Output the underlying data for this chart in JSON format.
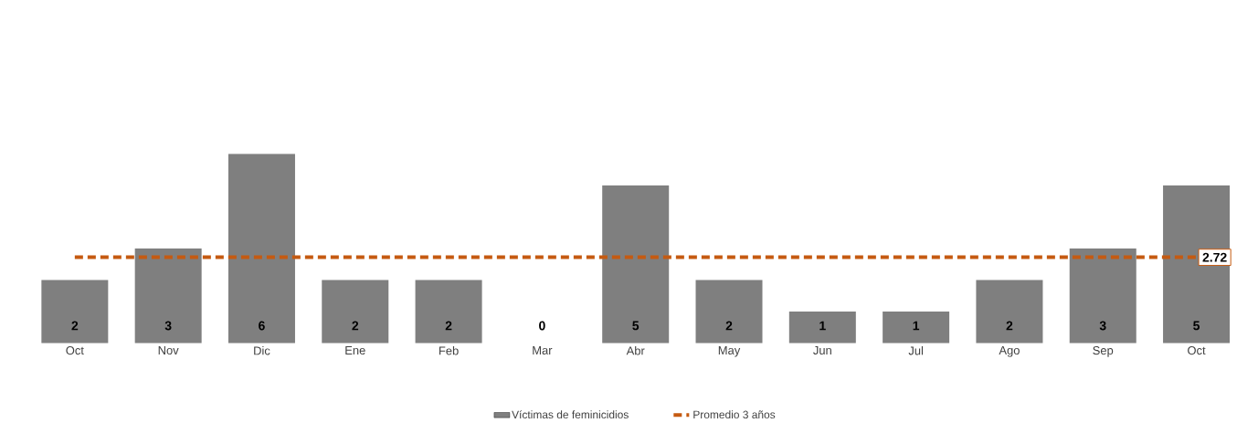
{
  "chart_data": {
    "type": "bar",
    "categories": [
      "Oct",
      "Nov",
      "Dic",
      "Ene",
      "Feb",
      "Mar",
      "Abr",
      "May",
      "Jun",
      "Jul",
      "Ago",
      "Sep",
      "Oct"
    ],
    "series": [
      {
        "name": "Víctimas de feminicidios",
        "color": "#7f7f7f",
        "values": [
          2,
          3,
          6,
          2,
          2,
          0,
          5,
          2,
          1,
          1,
          2,
          3,
          5
        ],
        "value_labels": [
          "2",
          "3",
          "6",
          "2",
          "2",
          "0",
          "5",
          "2",
          "1",
          "1",
          "2",
          "3",
          "5"
        ]
      },
      {
        "name": "Promedio 3 años",
        "type": "line",
        "color": "#c55a11",
        "line_style": "dashed",
        "marker": "none",
        "values": [
          2.72,
          2.72,
          2.72,
          2.72,
          2.72,
          2.72,
          2.72,
          2.72,
          2.72,
          2.72,
          2.72,
          2.72,
          2.72
        ],
        "value_labels": [
          null,
          null,
          null,
          null,
          null,
          null,
          null,
          null,
          null,
          null,
          null,
          null,
          "2.72"
        ]
      }
    ],
    "legend": "bottom",
    "grid": false
  }
}
